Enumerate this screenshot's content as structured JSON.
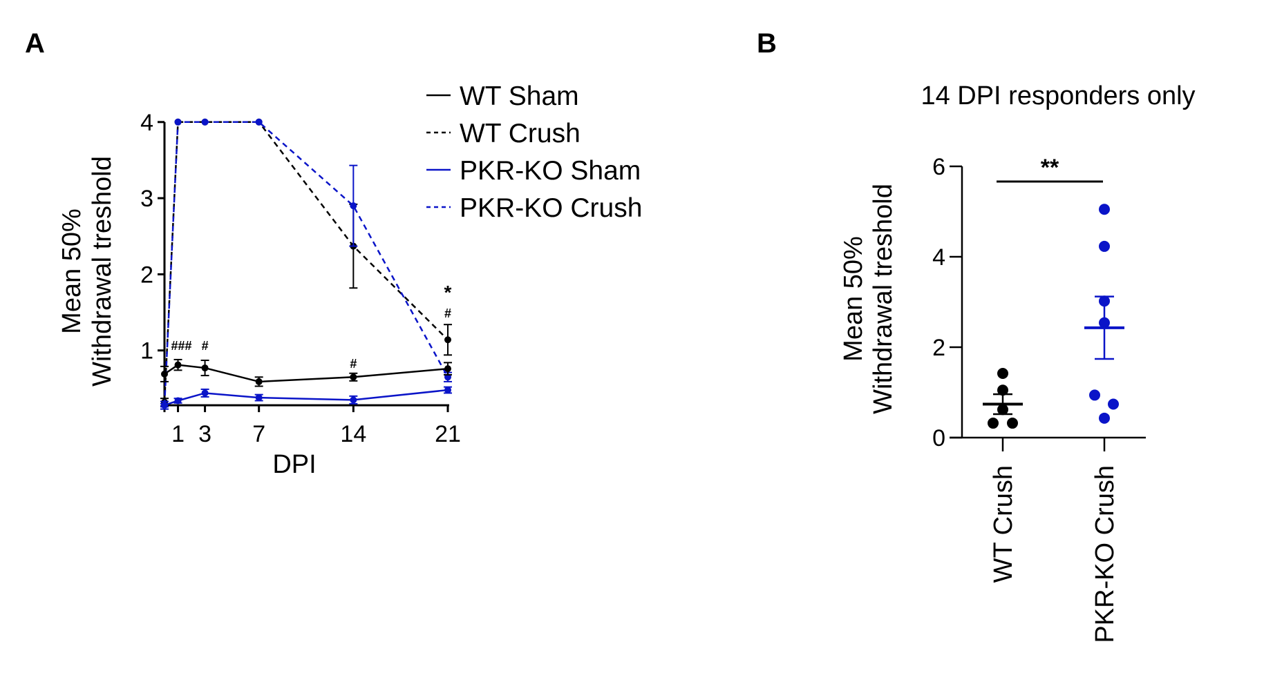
{
  "panel_labels": {
    "a": "A",
    "b": "B"
  },
  "chart_data": [
    {
      "type": "line",
      "panel": "A",
      "xlabel": "DPI",
      "ylabel_line1": "Mean 50%",
      "ylabel_line2": "Withdrawal treshold",
      "x_ticks": [
        1,
        3,
        7,
        14,
        21
      ],
      "y_ticks": [
        1,
        2,
        3,
        4
      ],
      "xlim": [
        0,
        21
      ],
      "ylim": [
        0.28,
        4
      ],
      "legend_position": "top-right outside",
      "x": [
        0,
        1,
        3,
        7,
        14,
        21
      ],
      "series": [
        {
          "name": "WT Sham",
          "color": "#000000",
          "dash": false,
          "values": [
            0.69,
            0.81,
            0.77,
            0.59,
            0.65,
            0.76
          ],
          "errors": [
            0.1,
            0.07,
            0.1,
            0.06,
            0.05,
            0.08
          ]
        },
        {
          "name": "WT Crush",
          "color": "#000000",
          "dash": true,
          "values": [
            0.32,
            4.0,
            4.0,
            4.0,
            2.37,
            1.14
          ],
          "errors": [
            0.05,
            0,
            0,
            0,
            0.55,
            0.2
          ]
        },
        {
          "name": "PKR-KO Sham",
          "color": "#0a14c8",
          "dash": false,
          "values": [
            0.28,
            0.34,
            0.44,
            0.38,
            0.35,
            0.48
          ],
          "errors": [
            0.02,
            0.03,
            0.05,
            0.04,
            0.05,
            0.04
          ]
        },
        {
          "name": "PKR-KO Crush",
          "color": "#0a14c8",
          "dash": true,
          "values": [
            0.28,
            4.0,
            4.0,
            4.0,
            2.9,
            0.65
          ],
          "errors": [
            0.05,
            0,
            0,
            0,
            0.53,
            0.06
          ]
        }
      ],
      "annotations": [
        {
          "x": 1,
          "text": "###"
        },
        {
          "x": 3,
          "text": "#"
        },
        {
          "x": 14,
          "text": "#"
        },
        {
          "x": 21,
          "text": "#"
        },
        {
          "x": 21,
          "text": "*"
        }
      ]
    },
    {
      "type": "scatter",
      "panel": "B",
      "title": "14 DPI responders only",
      "ylabel_line1": "Mean 50%",
      "ylabel_line2": "Withdrawal treshold",
      "categories": [
        "WT Crush",
        "PKR-KO Crush"
      ],
      "y_ticks": [
        0,
        2,
        4,
        6
      ],
      "ylim": [
        0,
        6
      ],
      "groups": [
        {
          "name": "WT Crush",
          "color": "#000000",
          "points": [
            1.42,
            1.05,
            0.62,
            0.32,
            0.32
          ],
          "mean": 0.74,
          "sem": 0.22
        },
        {
          "name": "PKR-KO Crush",
          "color": "#0a14c8",
          "points": [
            5.05,
            4.23,
            3.02,
            2.54,
            0.94,
            0.74,
            0.43
          ],
          "mean": 2.43,
          "sem": 0.69
        }
      ],
      "significance": "**"
    }
  ]
}
